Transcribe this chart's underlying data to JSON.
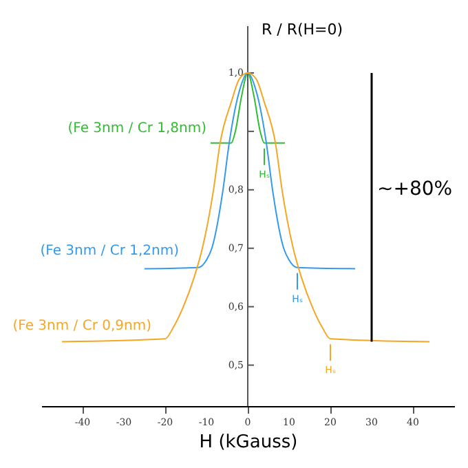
{
  "chart_data": {
    "type": "line",
    "xlabel": "H (kGauss)",
    "ylabel": "R / R(H=0)",
    "xlim": [
      -50,
      50
    ],
    "xticks": [
      -40,
      -30,
      -20,
      -10,
      0,
      10,
      20,
      30,
      40
    ],
    "ylim": [
      0.43,
      1.08
    ],
    "yticks": [
      {
        "value": 0.5,
        "label": "0,5"
      },
      {
        "value": 0.6,
        "label": "0,6"
      },
      {
        "value": 0.7,
        "label": "0,7"
      },
      {
        "value": 0.8,
        "label": "0,8"
      },
      {
        "value": 0.9,
        "label": null
      },
      {
        "value": 1.0,
        "label": "1,0"
      }
    ],
    "marker": "none",
    "line_style": "solid",
    "series": [
      {
        "name": "(Fe 3nm / Cr 1,8nm)",
        "color": "#33bb33",
        "x": [
          -9,
          -4,
          -3,
          -1.5,
          0,
          1.5,
          3,
          4,
          9
        ],
        "values": [
          0.88,
          0.88,
          0.9,
          0.96,
          1.0,
          0.96,
          0.9,
          0.88,
          0.88
        ]
      },
      {
        "name": "(Fe 3nm / Cr 1,2nm)",
        "color": "#3399ee",
        "x": [
          -25,
          -12,
          -10,
          -8.7,
          -6,
          -4.5,
          -2,
          0,
          2,
          4.5,
          6,
          8.7,
          10,
          12,
          26
        ],
        "values": [
          0.665,
          0.667,
          0.68,
          0.7,
          0.8,
          0.88,
          0.97,
          1.0,
          0.97,
          0.88,
          0.8,
          0.7,
          0.68,
          0.667,
          0.665
        ]
      },
      {
        "name": "(Fe 3nm / Cr 0,9nm)",
        "color": "#f5a623",
        "x": [
          -45,
          -20,
          -18,
          -15.6,
          -13,
          -11,
          -8.3,
          -6.7,
          -4,
          -2,
          0,
          2,
          4,
          6.7,
          8.3,
          11,
          13,
          15.6,
          18,
          20,
          44
        ],
        "values": [
          0.54,
          0.545,
          0.565,
          0.6,
          0.65,
          0.7,
          0.8,
          0.88,
          0.95,
          0.99,
          1.0,
          0.99,
          0.95,
          0.88,
          0.8,
          0.7,
          0.65,
          0.6,
          0.565,
          0.545,
          0.54
        ]
      }
    ],
    "annotations": [
      "Hₛ",
      "Hₛ",
      "Hₛ",
      "~+80%"
    ]
  }
}
